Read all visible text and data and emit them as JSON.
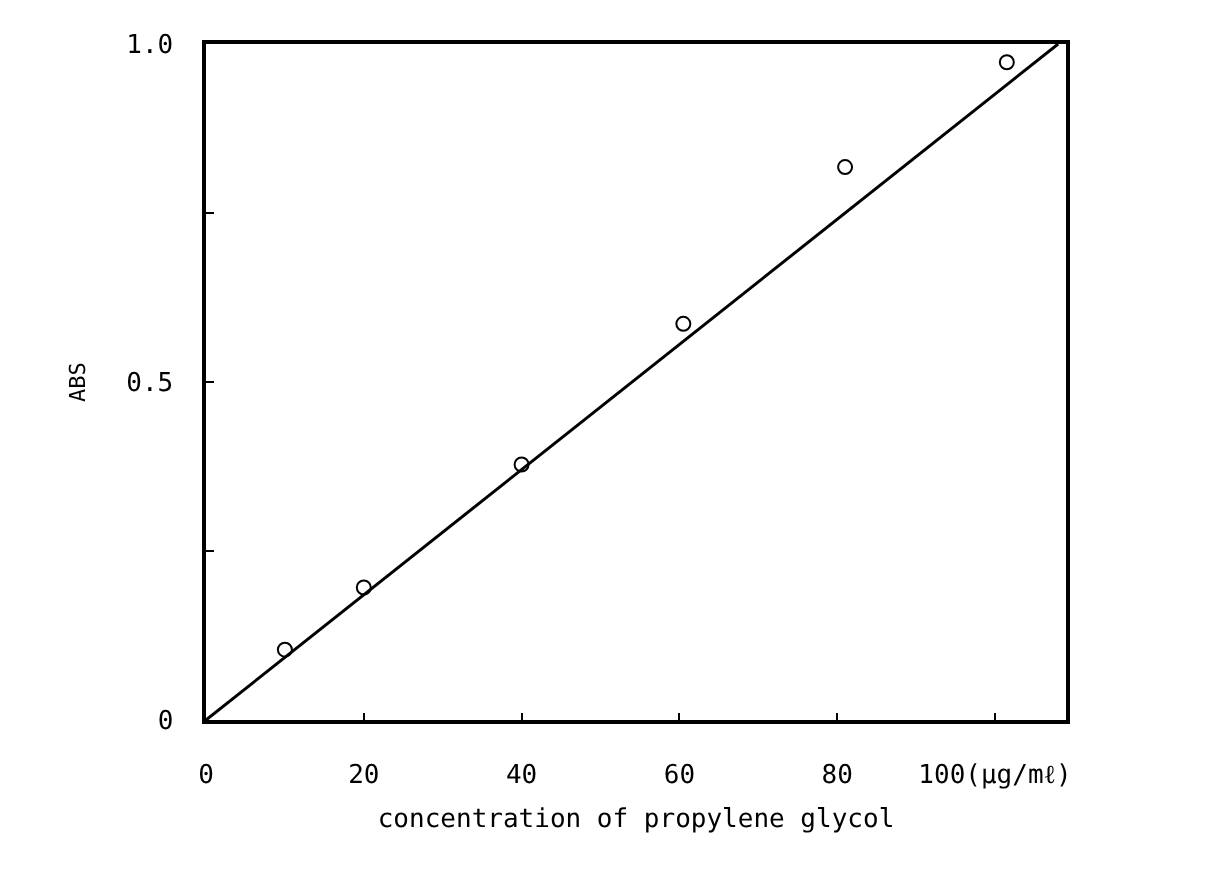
{
  "chart_data": {
    "type": "scatter",
    "xlabel": "concentration of propylene glycol",
    "ylabel": "ABS",
    "x": [
      10,
      20,
      40,
      60.5,
      81,
      101.5
    ],
    "series": [
      {
        "color": "#000000",
        "marker": "circle",
        "values": [
          0.104,
          0.196,
          0.378,
          0.586,
          0.818,
          0.973
        ]
      },
      {
        "type": "line",
        "color": "#000000",
        "x": [
          0,
          108
        ],
        "values": [
          0,
          1.0
        ],
        "marker": "none"
      }
    ],
    "xlim": [
      0,
      109
    ],
    "ylim": [
      0,
      1.0
    ],
    "xticks": [
      0,
      20,
      40,
      60,
      80,
      {
        "value": 100,
        "label": "100(μg/mℓ)"
      }
    ],
    "yticks": [
      0,
      {
        "value": 0.25,
        "label": null
      },
      {
        "value": 0.5,
        "label": "0.5"
      },
      {
        "value": 0.75,
        "label": null
      },
      {
        "value": 1.0,
        "label": "1.0"
      }
    ],
    "grid": false,
    "legend": false
  }
}
